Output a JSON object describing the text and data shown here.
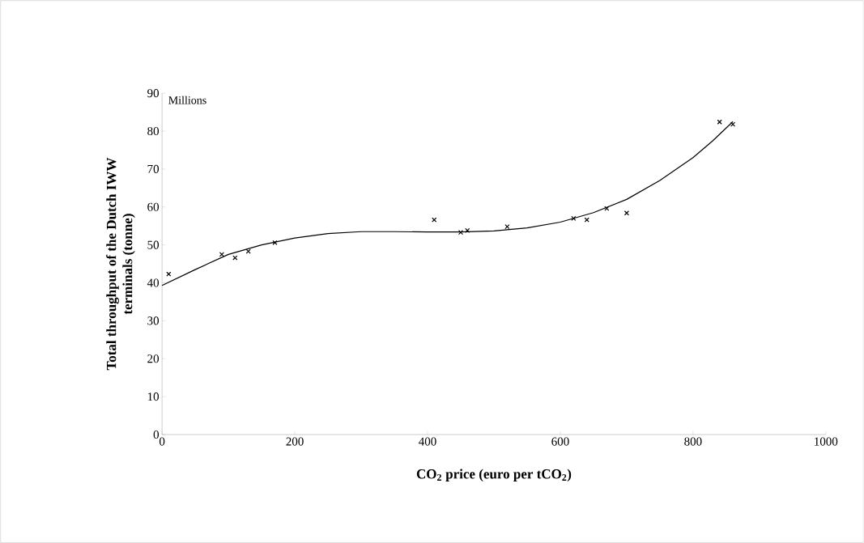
{
  "chart_data": {
    "type": "scatter",
    "xlabel": "CO$_{2}$ price (euro per tCO$_{2}$)",
    "ylabel": "Total throughput of the Dutch IWW terminals (tonne)",
    "annotations": [
      "Millions"
    ],
    "xlim": [
      0,
      1000
    ],
    "xticks": [
      0,
      200,
      400,
      600,
      800,
      1000
    ],
    "ylim": [
      0,
      90
    ],
    "yticks": [
      0,
      10,
      20,
      30,
      40,
      50,
      60,
      70,
      80,
      90
    ],
    "grid": false,
    "series": [
      {
        "marker": "cross",
        "color": "#000000",
        "x": [
          10,
          90,
          110,
          130,
          170,
          410,
          450,
          460,
          520,
          620,
          640,
          670,
          700,
          840,
          860
        ],
        "values": [
          42.3,
          47.5,
          46.6,
          48.3,
          50.6,
          56.6,
          53.3,
          53.8,
          54.8,
          57.0,
          56.6,
          59.6,
          58.4,
          82.4,
          81.8
        ]
      },
      {
        "type": "line",
        "marker": "none",
        "line_style": "solid",
        "color": "#000000",
        "x": [
          0,
          50,
          100,
          150,
          200,
          250,
          300,
          350,
          400,
          450,
          500,
          550,
          600,
          650,
          700,
          750,
          800,
          830,
          860
        ],
        "values": [
          39.3,
          43.5,
          47.5,
          50.0,
          51.8,
          53.0,
          53.5,
          53.5,
          53.4,
          53.4,
          53.7,
          54.5,
          56.0,
          58.5,
          62.0,
          67.0,
          73.0,
          77.5,
          82.5
        ]
      }
    ]
  }
}
